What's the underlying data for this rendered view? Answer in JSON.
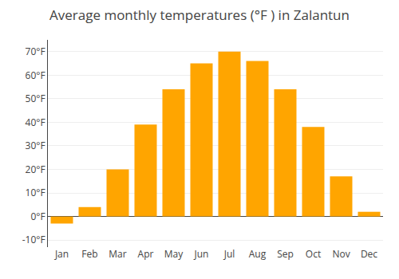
{
  "chart_data": {
    "type": "bar",
    "title": "Average monthly temperatures (°F ) in Zalantun",
    "categories": [
      "Jan",
      "Feb",
      "Mar",
      "Apr",
      "May",
      "Jun",
      "Jul",
      "Aug",
      "Sep",
      "Oct",
      "Nov",
      "Dec"
    ],
    "values": [
      -3,
      4,
      20,
      39,
      54,
      65,
      70,
      66,
      54,
      38,
      17,
      2
    ],
    "color": "#FFA500",
    "ylim": [
      -13,
      75
    ],
    "yticks": [
      {
        "value": -10,
        "label": "-10°F"
      },
      {
        "value": 0,
        "label": "0°F"
      },
      {
        "value": 10,
        "label": "10°F"
      },
      {
        "value": 20,
        "label": "20°F"
      },
      {
        "value": 30,
        "label": "30°F"
      },
      {
        "value": 40,
        "label": "40°F"
      },
      {
        "value": 50,
        "label": "50°F"
      },
      {
        "value": 60,
        "label": "60°F"
      },
      {
        "value": 70,
        "label": "70°F"
      }
    ],
    "grid": true
  }
}
